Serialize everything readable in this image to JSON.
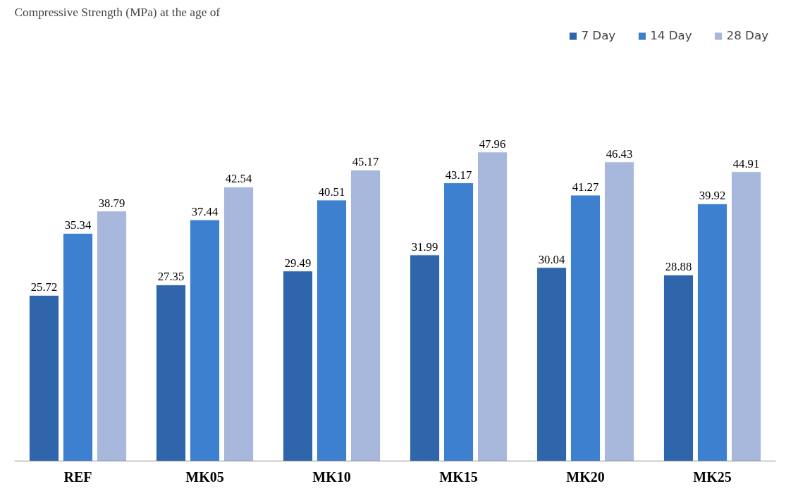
{
  "chart_data": {
    "type": "bar",
    "title": "Compressive Strength (MPa) at the age of",
    "categories": [
      "REF",
      "MK05",
      "MK10",
      "MK15",
      "MK20",
      "MK25"
    ],
    "series": [
      {
        "name": "7 Day",
        "color": "#2f66ab",
        "values": [
          25.72,
          27.35,
          29.49,
          31.99,
          30.04,
          28.88
        ]
      },
      {
        "name": "14 Day",
        "color": "#3d80d0",
        "values": [
          35.34,
          37.44,
          40.51,
          43.17,
          41.27,
          39.92
        ]
      },
      {
        "name": "28 Day",
        "color": "#a8b8dc",
        "values": [
          38.79,
          42.54,
          45.17,
          47.96,
          46.43,
          44.91
        ]
      }
    ],
    "data_labels": true,
    "legend": "top",
    "grid": false
  }
}
